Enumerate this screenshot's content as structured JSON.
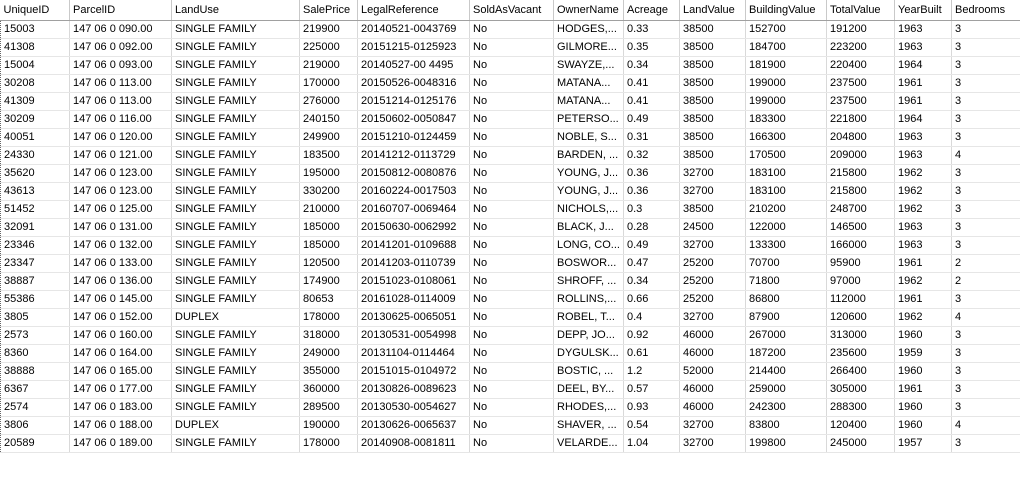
{
  "grid": {
    "columns": [
      "UniqueID",
      "ParcelID",
      "LandUse",
      "SalePrice",
      "LegalReference",
      "SoldAsVacant",
      "OwnerName",
      "Acreage",
      "LandValue",
      "BuildingValue",
      "TotalValue",
      "YearBuilt",
      "Bedrooms"
    ],
    "rows": [
      [
        "15003",
        "147 06 0 090.00",
        "SINGLE FAMILY",
        "219900",
        "20140521-0043769",
        "No",
        "HODGES,...",
        "0.33",
        "38500",
        "152700",
        "191200",
        "1963",
        "3"
      ],
      [
        "41308",
        "147 06 0 092.00",
        "SINGLE FAMILY",
        "225000",
        "20151215-0125923",
        "No",
        "GILMORE...",
        "0.35",
        "38500",
        "184700",
        "223200",
        "1963",
        "3"
      ],
      [
        "15004",
        "147 06 0 093.00",
        "SINGLE FAMILY",
        "219000",
        "20140527-00 4495",
        "No",
        "SWAYZE,...",
        "0.34",
        "38500",
        "181900",
        "220400",
        "1964",
        "3"
      ],
      [
        "30208",
        "147 06 0 113.00",
        "SINGLE FAMILY",
        "170000",
        "20150526-0048316",
        "No",
        "MATANA...",
        "0.41",
        "38500",
        "199000",
        "237500",
        "1961",
        "3"
      ],
      [
        "41309",
        "147 06 0 113.00",
        "SINGLE FAMILY",
        "276000",
        "20151214-0125176",
        "No",
        "MATANA...",
        "0.41",
        "38500",
        "199000",
        "237500",
        "1961",
        "3"
      ],
      [
        "30209",
        "147 06 0 116.00",
        "SINGLE FAMILY",
        "240150",
        "20150602-0050847",
        "No",
        "PETERSO...",
        "0.49",
        "38500",
        "183300",
        "221800",
        "1964",
        "3"
      ],
      [
        "40051",
        "147 06 0 120.00",
        "SINGLE FAMILY",
        "249900",
        "20151210-0124459",
        "No",
        "NOBLE, S...",
        "0.31",
        "38500",
        "166300",
        "204800",
        "1963",
        "3"
      ],
      [
        "24330",
        "147 06 0 121.00",
        "SINGLE FAMILY",
        "183500",
        "20141212-0113729",
        "No",
        "BARDEN, ...",
        "0.32",
        "38500",
        "170500",
        "209000",
        "1963",
        "4"
      ],
      [
        "35620",
        "147 06 0 123.00",
        "SINGLE FAMILY",
        "195000",
        "20150812-0080876",
        "No",
        "YOUNG, J...",
        "0.36",
        "32700",
        "183100",
        "215800",
        "1962",
        "3"
      ],
      [
        "43613",
        "147 06 0 123.00",
        "SINGLE FAMILY",
        "330200",
        "20160224-0017503",
        "No",
        "YOUNG, J...",
        "0.36",
        "32700",
        "183100",
        "215800",
        "1962",
        "3"
      ],
      [
        "51452",
        "147 06 0 125.00",
        "SINGLE FAMILY",
        "210000",
        "20160707-0069464",
        "No",
        "NICHOLS,...",
        "0.3",
        "38500",
        "210200",
        "248700",
        "1962",
        "3"
      ],
      [
        "32091",
        "147 06 0 131.00",
        "SINGLE FAMILY",
        "185000",
        "20150630-0062992",
        "No",
        "BLACK, J...",
        "0.28",
        "24500",
        "122000",
        "146500",
        "1963",
        "3"
      ],
      [
        "23346",
        "147 06 0 132.00",
        "SINGLE FAMILY",
        "185000",
        "20141201-0109688",
        "No",
        "LONG, CO...",
        "0.49",
        "32700",
        "133300",
        "166000",
        "1963",
        "3"
      ],
      [
        "23347",
        "147 06 0 133.00",
        "SINGLE FAMILY",
        "120500",
        "20141203-0110739",
        "No",
        "BOSWOR...",
        "0.47",
        "25200",
        "70700",
        "95900",
        "1961",
        "2"
      ],
      [
        "38887",
        "147 06 0 136.00",
        "SINGLE FAMILY",
        "174900",
        "20151023-0108061",
        "No",
        "SHROFF, ...",
        "0.34",
        "25200",
        "71800",
        "97000",
        "1962",
        "2"
      ],
      [
        "55386",
        "147 06 0 145.00",
        "SINGLE FAMILY",
        "80653",
        "20161028-0114009",
        "No",
        "ROLLINS,...",
        "0.66",
        "25200",
        "86800",
        "112000",
        "1961",
        "3"
      ],
      [
        "3805",
        "147 06 0 152.00",
        "DUPLEX",
        "178000",
        "20130625-0065051",
        "No",
        "ROBEL, T...",
        "0.4",
        "32700",
        "87900",
        "120600",
        "1962",
        "4"
      ],
      [
        "2573",
        "147 06 0 160.00",
        "SINGLE FAMILY",
        "318000",
        "20130531-0054998",
        "No",
        "DEPP, JO...",
        "0.92",
        "46000",
        "267000",
        "313000",
        "1960",
        "3"
      ],
      [
        "8360",
        "147 06 0 164.00",
        "SINGLE FAMILY",
        "249000",
        "20131104-0114464",
        "No",
        "DYGULSK...",
        "0.61",
        "46000",
        "187200",
        "235600",
        "1959",
        "3"
      ],
      [
        "38888",
        "147 06 0 165.00",
        "SINGLE FAMILY",
        "355000",
        "20151015-0104972",
        "No",
        "BOSTIC, ...",
        "1.2",
        "52000",
        "214400",
        "266400",
        "1960",
        "3"
      ],
      [
        "6367",
        "147 06 0 177.00",
        "SINGLE FAMILY",
        "360000",
        "20130826-0089623",
        "No",
        "DEEL, BY...",
        "0.57",
        "46000",
        "259000",
        "305000",
        "1961",
        "3"
      ],
      [
        "2574",
        "147 06 0 183.00",
        "SINGLE FAMILY",
        "289500",
        "20130530-0054627",
        "No",
        "RHODES,...",
        "0.93",
        "46000",
        "242300",
        "288300",
        "1960",
        "3"
      ],
      [
        "3806",
        "147 06 0 188.00",
        "DUPLEX",
        "190000",
        "20130626-0065637",
        "No",
        "SHAVER, ...",
        "0.54",
        "32700",
        "83800",
        "120400",
        "1960",
        "4"
      ],
      [
        "20589",
        "147 06 0 189.00",
        "SINGLE FAMILY",
        "178000",
        "20140908-0081811",
        "No",
        "VELARDE...",
        "1.04",
        "32700",
        "199800",
        "245000",
        "1957",
        "3"
      ]
    ]
  }
}
